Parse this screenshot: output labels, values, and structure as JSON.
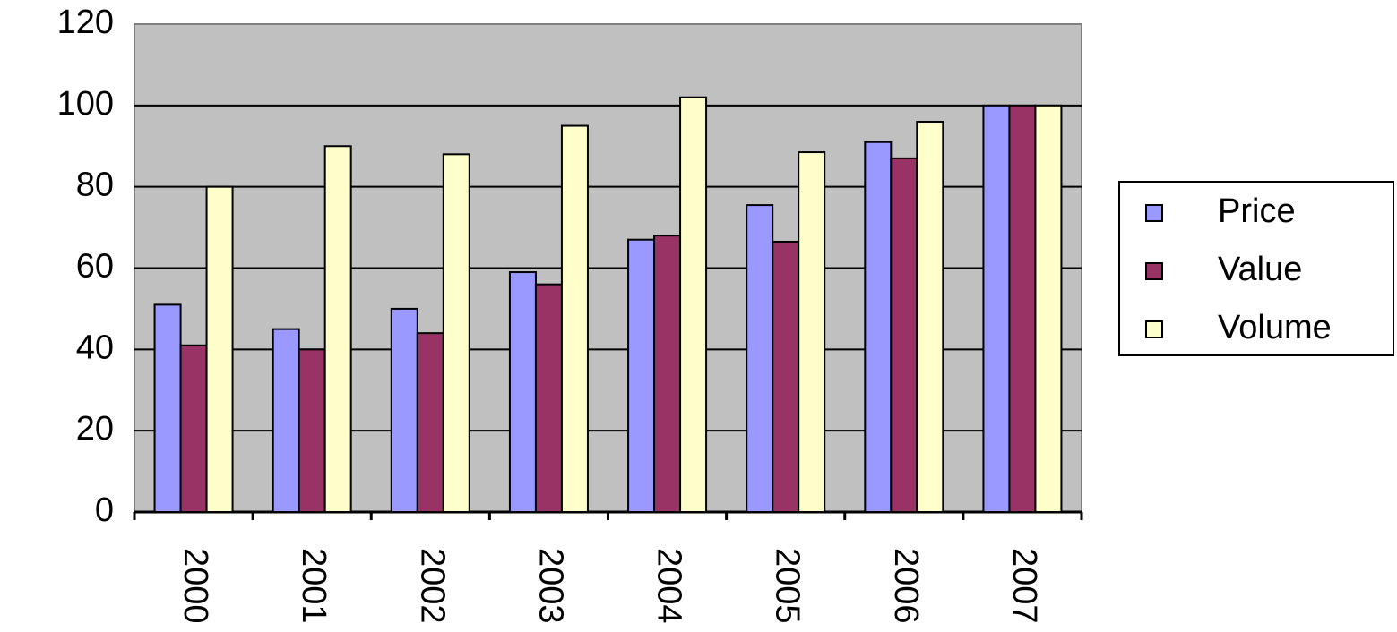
{
  "chart_data": {
    "type": "bar",
    "categories": [
      "2000",
      "2001",
      "2002",
      "2003",
      "2004",
      "2005",
      "2006",
      "2007"
    ],
    "series": [
      {
        "name": "Price",
        "color": "#9999ff",
        "values": [
          51,
          45,
          50,
          59,
          67,
          75.5,
          91,
          100
        ]
      },
      {
        "name": "Value",
        "color": "#993366",
        "values": [
          41,
          40,
          44,
          56,
          68,
          66.5,
          87,
          100
        ]
      },
      {
        "name": "Volume",
        "color": "#ffffcc",
        "values": [
          80,
          90,
          88,
          95,
          102,
          88.5,
          96,
          100
        ]
      }
    ],
    "ylim": [
      0,
      120
    ],
    "yticks": [
      0,
      20,
      40,
      60,
      80,
      100,
      120
    ],
    "grid": true,
    "legend": "right"
  }
}
